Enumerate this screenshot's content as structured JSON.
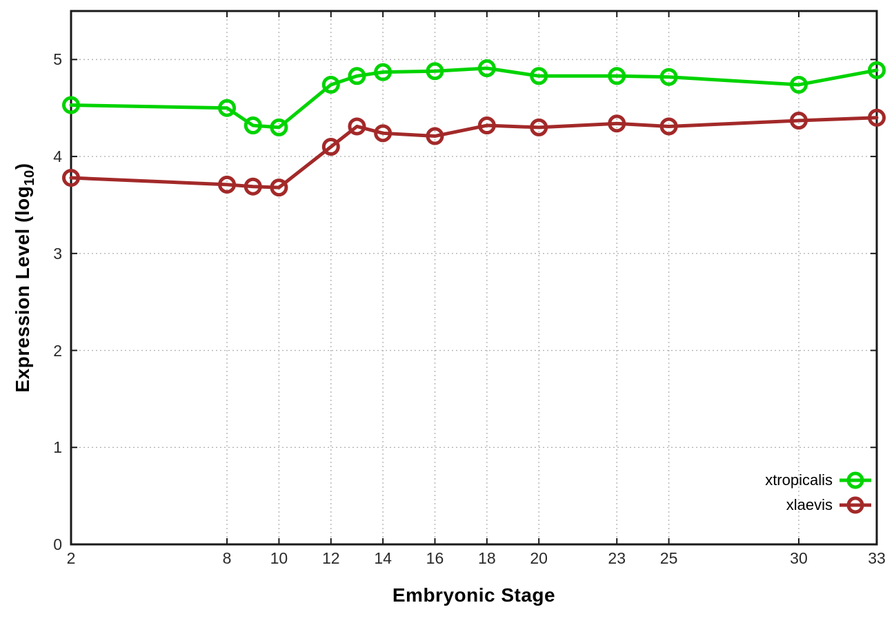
{
  "chart_data": {
    "type": "line",
    "title": "",
    "xlabel": "Embryonic Stage",
    "ylabel": "Expression Level (log10)",
    "ylabel_parts": {
      "pre": "Expression Level (log",
      "sub": "10",
      "post": ")"
    },
    "x": [
      2,
      8,
      9,
      10,
      12,
      13,
      14,
      16,
      18,
      20,
      23,
      25,
      30,
      33
    ],
    "xticks": [
      2,
      8,
      10,
      12,
      14,
      16,
      18,
      20,
      23,
      25,
      30,
      33
    ],
    "yticks": [
      0,
      1,
      2,
      3,
      4,
      5
    ],
    "xlim": [
      2,
      33
    ],
    "ylim": [
      0,
      5.5
    ],
    "grid": true,
    "legend_position": "inside-bottom-right",
    "marker": "open-circle",
    "series": [
      {
        "name": "xtropicalis",
        "color": "#00d300",
        "values": [
          4.53,
          4.5,
          4.32,
          4.3,
          4.74,
          4.83,
          4.87,
          4.88,
          4.91,
          4.83,
          4.83,
          4.82,
          4.74,
          4.89
        ]
      },
      {
        "name": "xlaevis",
        "color": "#a32929",
        "values": [
          3.78,
          3.71,
          3.69,
          3.68,
          4.1,
          4.31,
          4.24,
          4.21,
          4.32,
          4.3,
          4.34,
          4.31,
          4.37,
          4.4
        ]
      }
    ]
  }
}
